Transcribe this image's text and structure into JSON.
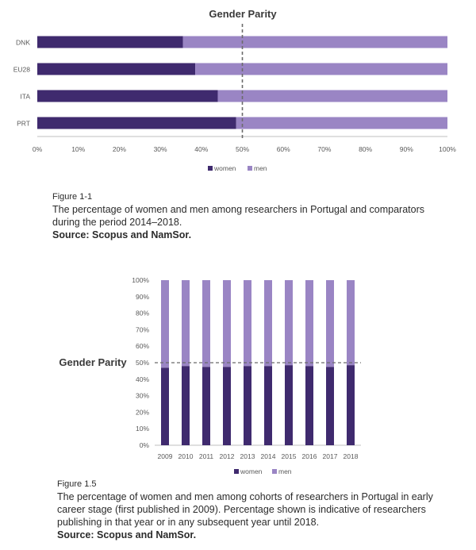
{
  "chart_data": [
    {
      "type": "bar",
      "orientation": "horizontal",
      "stacked": true,
      "title": "Gender Parity",
      "categories": [
        "DNK",
        "EU28",
        "ITA",
        "PRT"
      ],
      "series": [
        {
          "name": "women",
          "values": [
            35.5,
            38.5,
            44,
            48.5
          ]
        },
        {
          "name": "men",
          "values": [
            64.5,
            61.5,
            56,
            51.5
          ]
        }
      ],
      "xlim": [
        0,
        100
      ],
      "x_ticks": [
        "0%",
        "10%",
        "20%",
        "30%",
        "40%",
        "50%",
        "60%",
        "70%",
        "80%",
        "90%",
        "100%"
      ],
      "reference_line": 50,
      "legend": "bottom",
      "colors": {
        "women": "#3f2a6e",
        "men": "#9a85c4",
        "reference": "#6b6b6b",
        "axis": "#bfbfbf",
        "text": "#595959"
      }
    },
    {
      "type": "bar",
      "orientation": "vertical",
      "stacked": true,
      "title": "Gender Parity",
      "categories": [
        "2009",
        "2010",
        "2011",
        "2012",
        "2013",
        "2014",
        "2015",
        "2016",
        "2017",
        "2018"
      ],
      "series": [
        {
          "name": "women",
          "values": [
            47,
            48,
            47.5,
            47.5,
            48,
            48,
            48.5,
            48,
            47.5,
            48.5
          ]
        },
        {
          "name": "men",
          "values": [
            53,
            52,
            52.5,
            52.5,
            52,
            52,
            51.5,
            52,
            52.5,
            51.5
          ]
        }
      ],
      "ylim": [
        0,
        100
      ],
      "y_ticks": [
        "0%",
        "10%",
        "20%",
        "30%",
        "40%",
        "50%",
        "60%",
        "70%",
        "80%",
        "90%",
        "100%"
      ],
      "reference_line": 50,
      "legend": "bottom",
      "colors": {
        "women": "#3f2a6e",
        "men": "#9a85c4",
        "reference": "#6b6b6b",
        "axis": "#bfbfbf",
        "text": "#595959"
      }
    }
  ],
  "captions": [
    {
      "figure": "Figure 1-1",
      "text": "The percentage of women and men among researchers in Portugal and comparators during the period 2014–2018.",
      "source": "Source: Scopus and NamSor."
    },
    {
      "figure": "Figure 1.5",
      "text": "The percentage of women and men among cohorts of researchers in Portugal in early career stage (first published in 2009). Percentage shown is indicative of researchers publishing in that year or in any subsequent year until 2018.",
      "source": "Source: Scopus and NamSor."
    }
  ]
}
